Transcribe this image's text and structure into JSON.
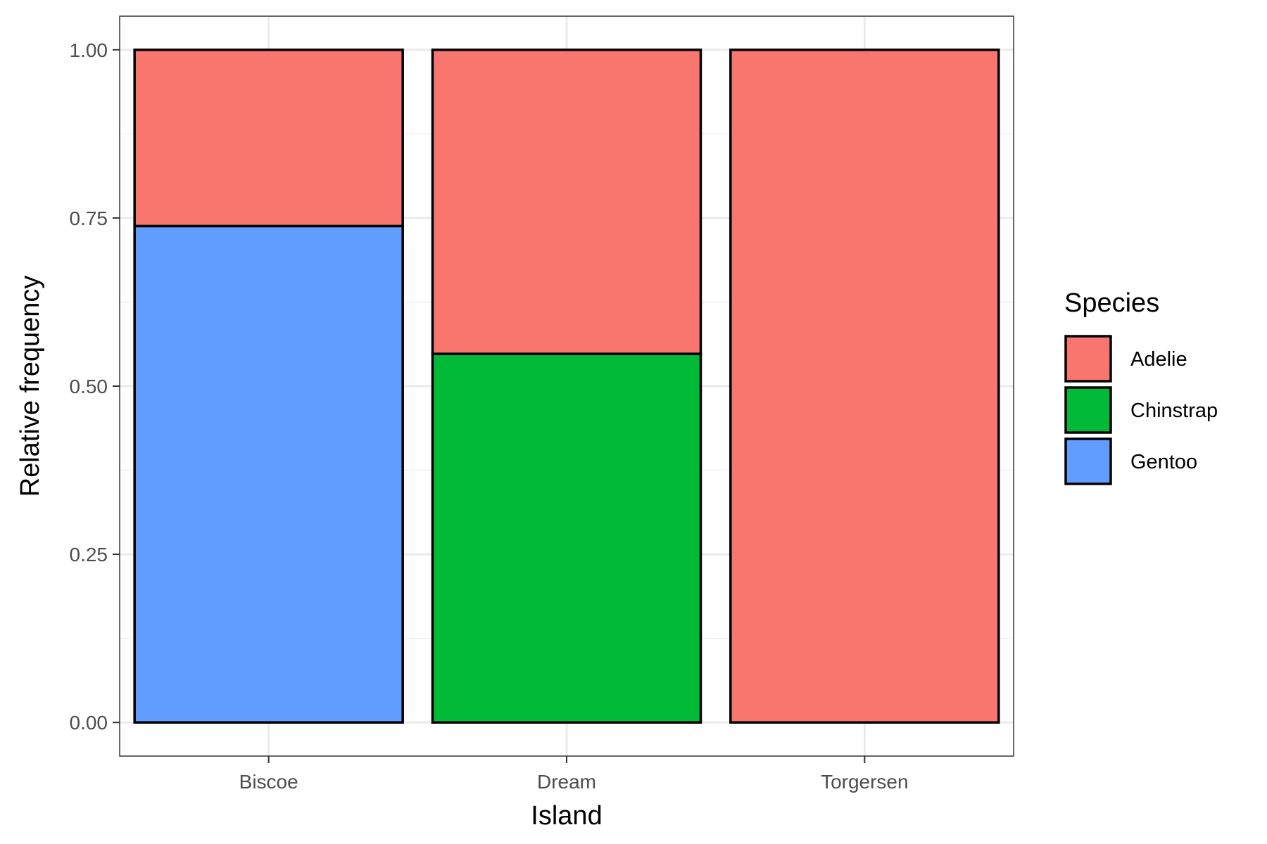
{
  "chart_data": {
    "type": "bar",
    "stacked": true,
    "categories": [
      "Biscoe",
      "Dream",
      "Torgersen"
    ],
    "series": [
      {
        "name": "Adelie",
        "values": [
          0.262,
          0.452,
          1.0
        ],
        "color": "#F8766D"
      },
      {
        "name": "Chinstrap",
        "values": [
          0.0,
          0.548,
          0.0
        ],
        "color": "#00BA38"
      },
      {
        "name": "Gentoo",
        "values": [
          0.738,
          0.0,
          0.0
        ],
        "color": "#619CFF"
      }
    ],
    "title": "",
    "xlabel": "Island",
    "ylabel": "Relative frequency",
    "ylim": [
      -0.05,
      1.05
    ],
    "yticks": [
      0.0,
      0.25,
      0.5,
      0.75,
      1.0
    ],
    "ytick_labels": [
      "0.00",
      "0.25",
      "0.50",
      "0.75",
      "1.00"
    ],
    "grid": true,
    "legend": {
      "title": "Species",
      "position": "right"
    },
    "bar_outline_color": "#000000"
  }
}
